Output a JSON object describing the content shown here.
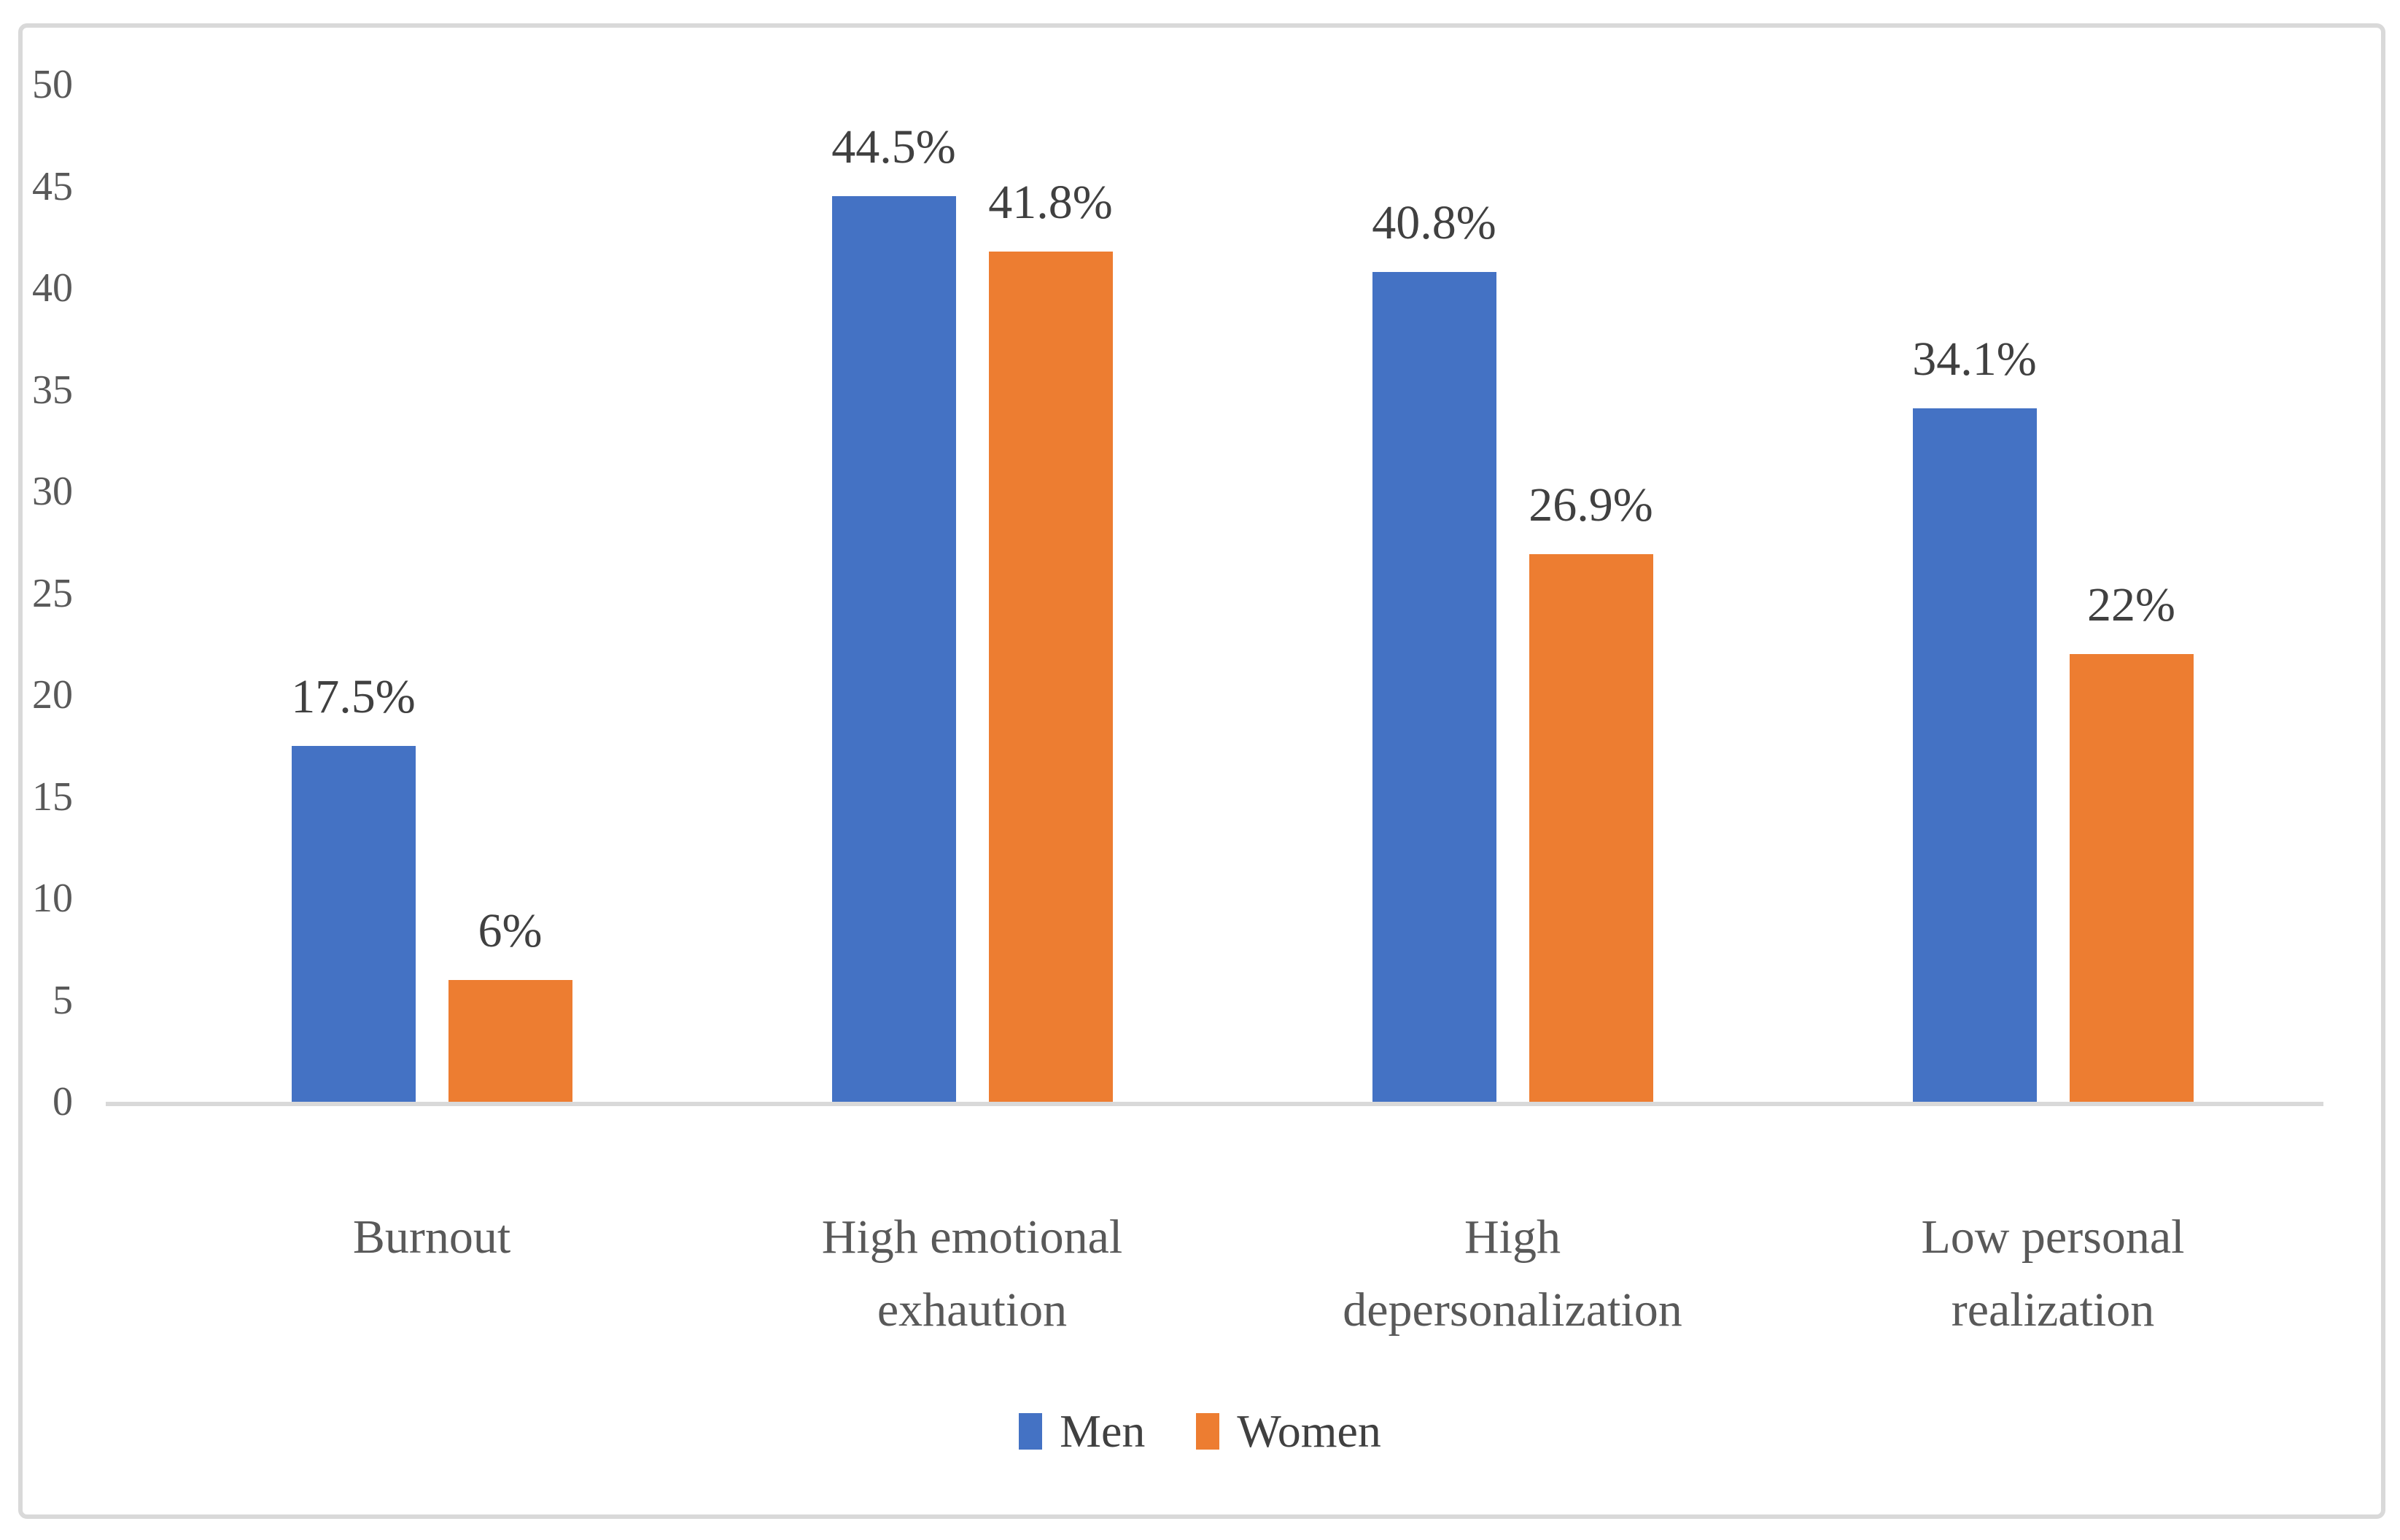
{
  "chart_data": {
    "type": "bar",
    "title": "",
    "xlabel": "",
    "ylabel": "",
    "grid": false,
    "categories": [
      "Burnout",
      "High emotional exhaution",
      "High depersonalization",
      "Low personal realization"
    ],
    "categories_lines": [
      [
        "Burnout"
      ],
      [
        "High emotional",
        "exhaution"
      ],
      [
        "High",
        "depersonalization"
      ],
      [
        "Low personal",
        "realization"
      ]
    ],
    "series": [
      {
        "name": "Men",
        "color": "#4472C4",
        "values": [
          17.5,
          44.5,
          40.8,
          34.1
        ],
        "labels": [
          "17.5%",
          "44.5%",
          "40.8%",
          "34.1%"
        ]
      },
      {
        "name": "Women",
        "color": "#ED7D31",
        "values": [
          6,
          41.8,
          26.9,
          22
        ],
        "labels": [
          "6%",
          "41.8%",
          "26.9%",
          "22%"
        ]
      }
    ],
    "y_axis": {
      "min": 0,
      "max": 50,
      "step": 5,
      "ticks": [
        "0",
        "5",
        "10",
        "15",
        "20",
        "25",
        "30",
        "35",
        "40",
        "45",
        "50"
      ]
    },
    "legend": {
      "position": "bottom",
      "entries": [
        "Men",
        "Women"
      ]
    }
  },
  "colors": {
    "background": "#ffffff",
    "frame_border": "#d9d9d9",
    "axis_line": "#d9d9d9",
    "tick_text": "#595959",
    "category_text": "#595959",
    "data_label_text": "#404040",
    "legend_text": "#404040"
  }
}
